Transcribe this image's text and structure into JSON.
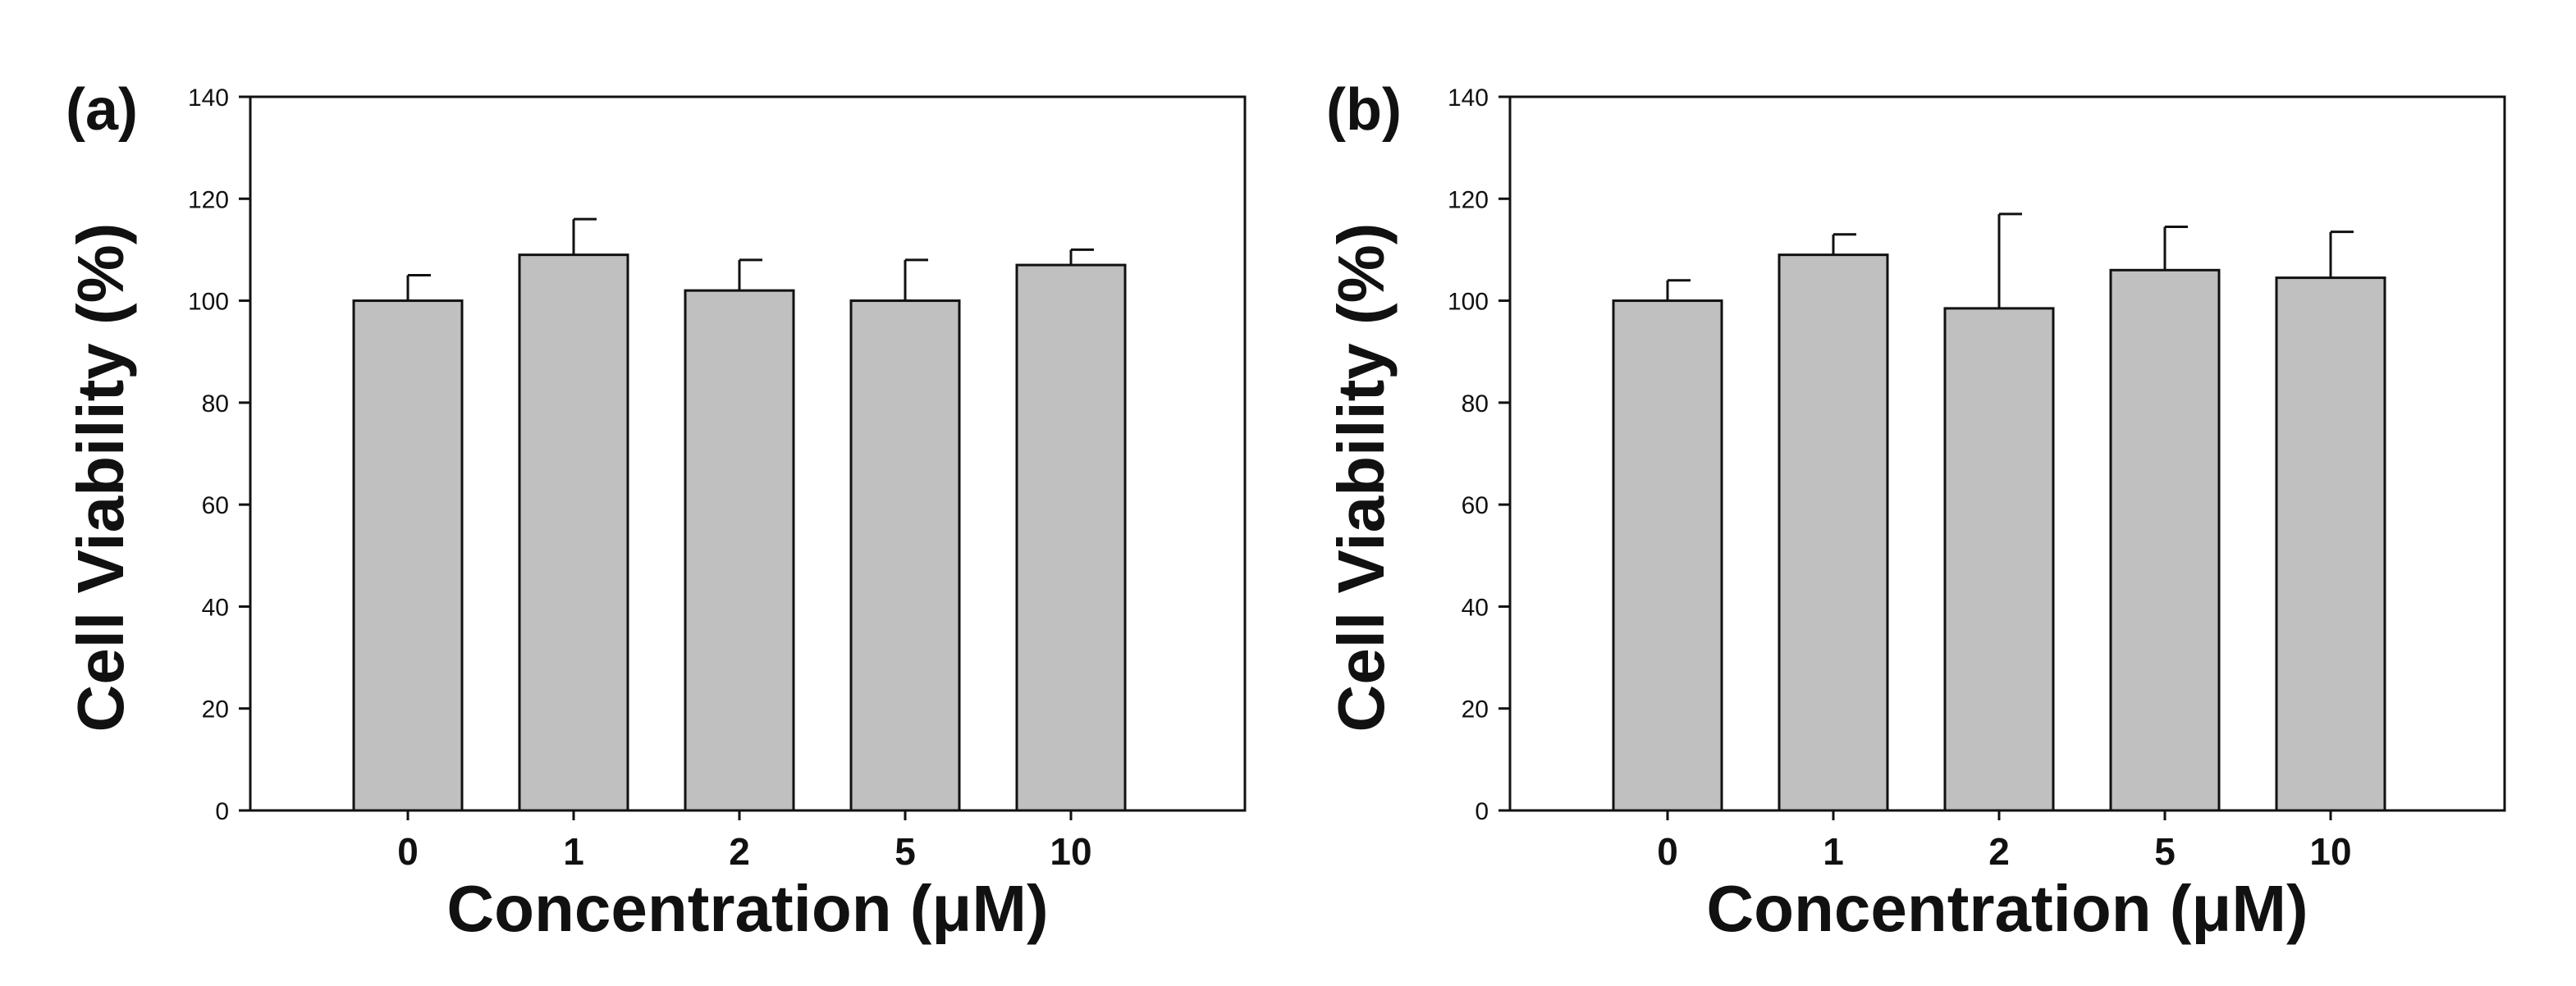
{
  "chart_data": [
    {
      "type": "bar",
      "panel_label": "(a)",
      "categories": [
        "0",
        "1",
        "2",
        "5",
        "10"
      ],
      "values": [
        100,
        109,
        102,
        100,
        107
      ],
      "errors": [
        5,
        7,
        6,
        8,
        3
      ],
      "xlabel": "Concentration (μM)",
      "ylabel": "Cell Viability (%)",
      "ylim": [
        0,
        140
      ],
      "yticks": [
        "0",
        "20",
        "40",
        "60",
        "80",
        "100",
        "120",
        "140"
      ],
      "bar_color": "#c0c0c0",
      "edge_color": "#111111",
      "grid": false
    },
    {
      "type": "bar",
      "panel_label": "(b)",
      "categories": [
        "0",
        "1",
        "2",
        "5",
        "10"
      ],
      "values": [
        100,
        109,
        98.5,
        106,
        104.5
      ],
      "errors": [
        4,
        4,
        18.5,
        8.5,
        9
      ],
      "xlabel": "Concentration (μM)",
      "ylabel": "Cell Viability (%)",
      "ylim": [
        0,
        140
      ],
      "yticks": [
        "0",
        "20",
        "40",
        "60",
        "80",
        "100",
        "120",
        "140"
      ],
      "bar_color": "#c0c0c0",
      "edge_color": "#111111",
      "grid": false
    }
  ]
}
